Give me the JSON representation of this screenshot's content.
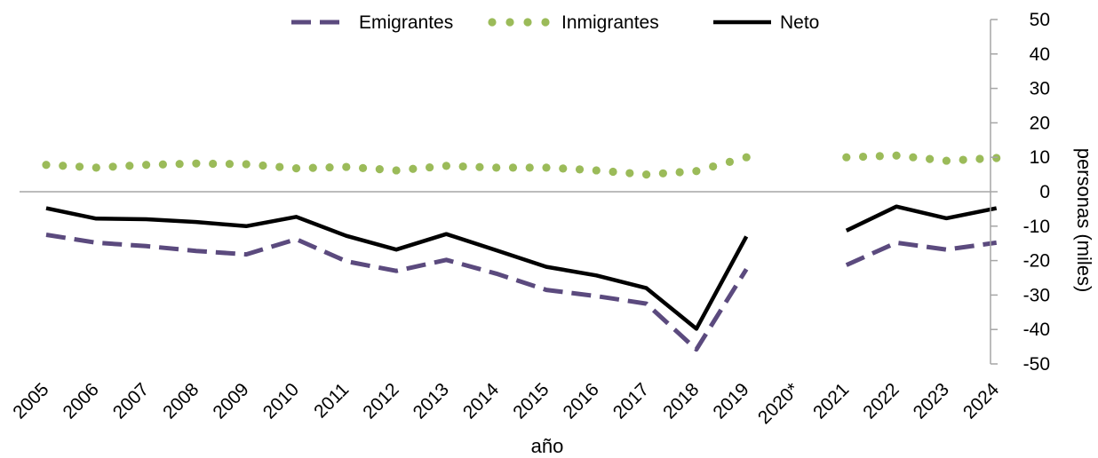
{
  "chart_data": {
    "type": "line",
    "categories": [
      "2005",
      "2006",
      "2007",
      "2008",
      "2009",
      "2010",
      "2011",
      "2012",
      "2013",
      "2014",
      "2015",
      "2016",
      "2017",
      "2018",
      "2019",
      "2020*",
      "2021",
      "2022",
      "2023",
      "2024"
    ],
    "series": [
      {
        "name": "Emigrantes",
        "style": "dashed",
        "color": "#5b4a7e",
        "values": [
          -12.5,
          -14.8,
          -15.8,
          -17.2,
          -18.2,
          -13.8,
          -20.2,
          -23,
          -19.8,
          -23.8,
          -28.5,
          -30.3,
          -32.5,
          -45.8,
          -22.5,
          null,
          -21.3,
          -14.8,
          -16.8,
          -14.8
        ]
      },
      {
        "name": "Inmigrantes",
        "style": "dotted",
        "color": "#9bbb59",
        "values": [
          7.8,
          7,
          7.8,
          8.2,
          8,
          6.8,
          7.2,
          6.2,
          7.5,
          7,
          7,
          6.2,
          5,
          6,
          10,
          null,
          10,
          10.5,
          9,
          9.8
        ]
      },
      {
        "name": "Neto",
        "style": "solid",
        "color": "#000000",
        "values": [
          -4.8,
          -7.8,
          -8,
          -8.8,
          -10,
          -7.3,
          -12.8,
          -16.8,
          -12.3,
          -17,
          -21.8,
          -24.3,
          -28,
          -39.8,
          -13,
          null,
          -11.3,
          -4.3,
          -7.7,
          -4.8
        ]
      }
    ],
    "xlabel": "año",
    "ylabel": "personas (miles)",
    "ylim": [
      -50,
      50
    ],
    "yticks": [
      50,
      40,
      30,
      20,
      10,
      0,
      -10,
      -20,
      -30,
      -40,
      -50
    ],
    "y_axis_side": "right",
    "grid": false,
    "legend_position": "top-center"
  }
}
